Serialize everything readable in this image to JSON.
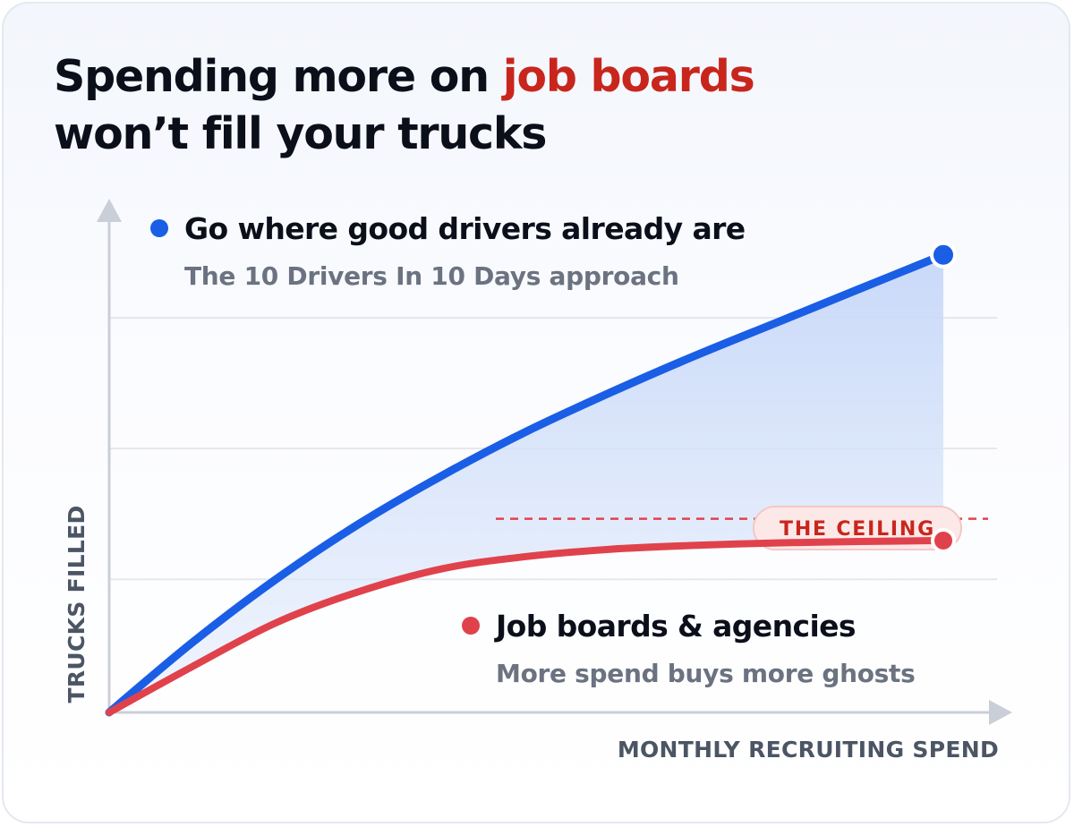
{
  "title": {
    "line1_prefix": "Spending more on ",
    "line1_highlight": "job boards",
    "line2": "won’t fill your trucks"
  },
  "colors": {
    "blue": "#1a5ee6",
    "red": "#e0424c",
    "highlight": "#c8261d",
    "fill": "#c9d9f7"
  },
  "chart_data": {
    "type": "line",
    "xlabel": "MONTHLY RECRUITING SPEND",
    "ylabel": "TRUCKS FILLED",
    "xlim": [
      0,
      10
    ],
    "ylim": [
      0,
      10
    ],
    "grid": true,
    "series": [
      {
        "name": "Go where good drivers already are",
        "subtitle": "The 10 Drivers In 10 Days approach",
        "color": "#1a5ee6",
        "x": [
          0,
          1,
          2,
          3,
          4,
          5,
          6,
          7,
          8,
          9,
          10
        ],
        "y": [
          0,
          1.45,
          2.75,
          3.9,
          4.9,
          5.8,
          6.6,
          7.35,
          8.05,
          8.75,
          9.45
        ]
      },
      {
        "name": "Job boards & agencies",
        "subtitle": "More spend buys more ghosts",
        "color": "#e0424c",
        "x": [
          0,
          1,
          2,
          3,
          4,
          5,
          6,
          7,
          8,
          9,
          10
        ],
        "y": [
          0,
          0.95,
          1.85,
          2.5,
          2.97,
          3.22,
          3.37,
          3.45,
          3.5,
          3.53,
          3.55
        ]
      }
    ],
    "annotations": [
      {
        "text": "THE CEILING",
        "y": 4.0
      }
    ]
  }
}
